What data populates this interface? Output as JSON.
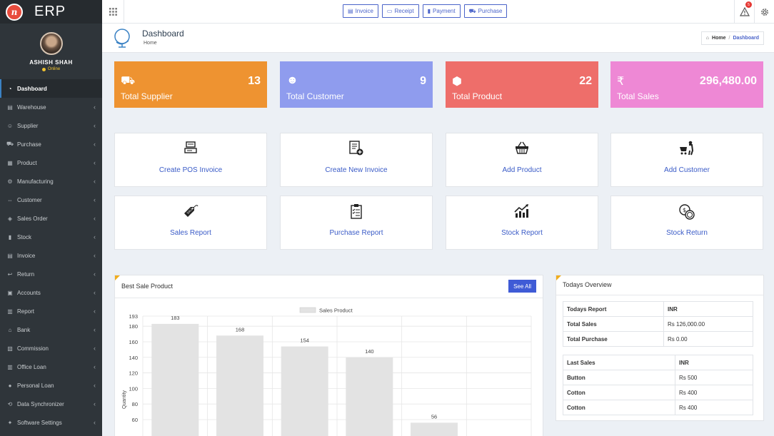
{
  "brand": {
    "logo_letter": "n",
    "name": "ERP"
  },
  "user": {
    "name": "ASHISH SHAH",
    "status": "Online"
  },
  "sidebar": {
    "items": [
      {
        "label": "Dashboard",
        "icon": "dashboard-icon",
        "active": true
      },
      {
        "label": "Warehouse",
        "icon": "warehouse-icon"
      },
      {
        "label": "Supplier",
        "icon": "user-icon"
      },
      {
        "label": "Purchase",
        "icon": "cart-icon"
      },
      {
        "label": "Product",
        "icon": "product-icon"
      },
      {
        "label": "Manufacturing",
        "icon": "manufacturing-icon"
      },
      {
        "label": "Customer",
        "icon": "handshake-icon"
      },
      {
        "label": "Sales Order",
        "icon": "tag-icon"
      },
      {
        "label": "Stock",
        "icon": "bar-chart-icon"
      },
      {
        "label": "Invoice",
        "icon": "invoice-icon"
      },
      {
        "label": "Return",
        "icon": "return-icon"
      },
      {
        "label": "Accounts",
        "icon": "money-icon"
      },
      {
        "label": "Report",
        "icon": "report-icon"
      },
      {
        "label": "Bank",
        "icon": "bank-icon"
      },
      {
        "label": "Commission",
        "icon": "commission-icon"
      },
      {
        "label": "Office Loan",
        "icon": "building-icon"
      },
      {
        "label": "Personal Loan",
        "icon": "person-icon"
      },
      {
        "label": "Data Synchronizer",
        "icon": "sync-icon"
      },
      {
        "label": "Software Settings",
        "icon": "settings-icon"
      }
    ]
  },
  "topbar": {
    "buttons": [
      {
        "label": "Invoice",
        "icon": "invoice-icon"
      },
      {
        "label": "Receipt",
        "icon": "receipt-icon"
      },
      {
        "label": "Payment",
        "icon": "payment-icon"
      },
      {
        "label": "Purchase",
        "icon": "cart-icon"
      }
    ],
    "notification_count": "5"
  },
  "page": {
    "title": "Dashboard",
    "subtitle": "Home",
    "breadcrumb": {
      "home": "Home",
      "separator": "/",
      "current": "Dashboard"
    }
  },
  "stats": [
    {
      "label": "Total Supplier",
      "value": "13",
      "color": "#ee9331",
      "icon": "truck-icon"
    },
    {
      "label": "Total Customer",
      "value": "9",
      "color": "#8f9cee",
      "icon": "users-icon"
    },
    {
      "label": "Total Product",
      "value": "22",
      "color": "#ee6e6a",
      "icon": "box-icon"
    },
    {
      "label": "Total Sales",
      "value": "296,480.00",
      "color": "#ee88d5",
      "icon": "rupee-icon"
    }
  ],
  "quick_actions": [
    {
      "label": "Create POS Invoice",
      "icon": "pos-icon"
    },
    {
      "label": "Create New Invoice",
      "icon": "new-invoice-icon"
    },
    {
      "label": "Add Product",
      "icon": "basket-icon"
    },
    {
      "label": "Add Customer",
      "icon": "customer-cart-icon"
    },
    {
      "label": "Sales Report",
      "icon": "price-tag-icon"
    },
    {
      "label": "Purchase Report",
      "icon": "clipboard-icon"
    },
    {
      "label": "Stock Report",
      "icon": "growth-chart-icon"
    },
    {
      "label": "Stock Return",
      "icon": "coins-icon"
    }
  ],
  "best_sale": {
    "title": "Best Sale Product",
    "see_all": "See All"
  },
  "chart_data": {
    "type": "bar",
    "legend": [
      "Sales Product"
    ],
    "legend_position": "top-center",
    "ylabel": "Quantity",
    "y_ticks": [
      60,
      80,
      100,
      120,
      140,
      160,
      180,
      193
    ],
    "ylim": [
      55,
      193
    ],
    "grid": true,
    "color": "#e3e3e3",
    "series": [
      {
        "name": "Sales Product",
        "values": [
          183,
          168,
          154,
          140,
          56
        ]
      }
    ]
  },
  "overview": {
    "title": "Todays Overview",
    "report_header": [
      "Todays Report",
      "INR"
    ],
    "report_rows": [
      [
        "Total Sales",
        "Rs 126,000.00"
      ],
      [
        "Total Purchase",
        "Rs 0.00"
      ]
    ],
    "last_sales_header": [
      "Last Sales",
      "INR"
    ],
    "last_sales_rows": [
      [
        "Button",
        "Rs 500"
      ],
      [
        "Cotton",
        "Rs 400"
      ],
      [
        "Cotton",
        "Rs 400"
      ]
    ]
  }
}
